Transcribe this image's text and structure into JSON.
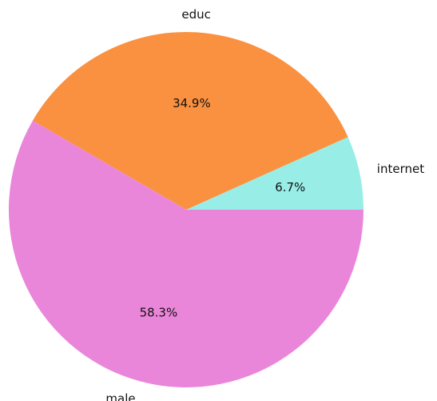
{
  "chart_data": {
    "type": "pie",
    "slices": [
      {
        "label": "internet",
        "value": 6.7,
        "pct_label": "6.7%",
        "color": "#98eee6"
      },
      {
        "label": "educ",
        "value": 34.9,
        "pct_label": "34.9%",
        "color": "#fa9141"
      },
      {
        "label": "male",
        "value": 58.3,
        "pct_label": "58.3%",
        "color": "#ea86da"
      }
    ],
    "start_angle_deg": 0,
    "direction": "counterclockwise",
    "title": "",
    "legend": "none"
  }
}
